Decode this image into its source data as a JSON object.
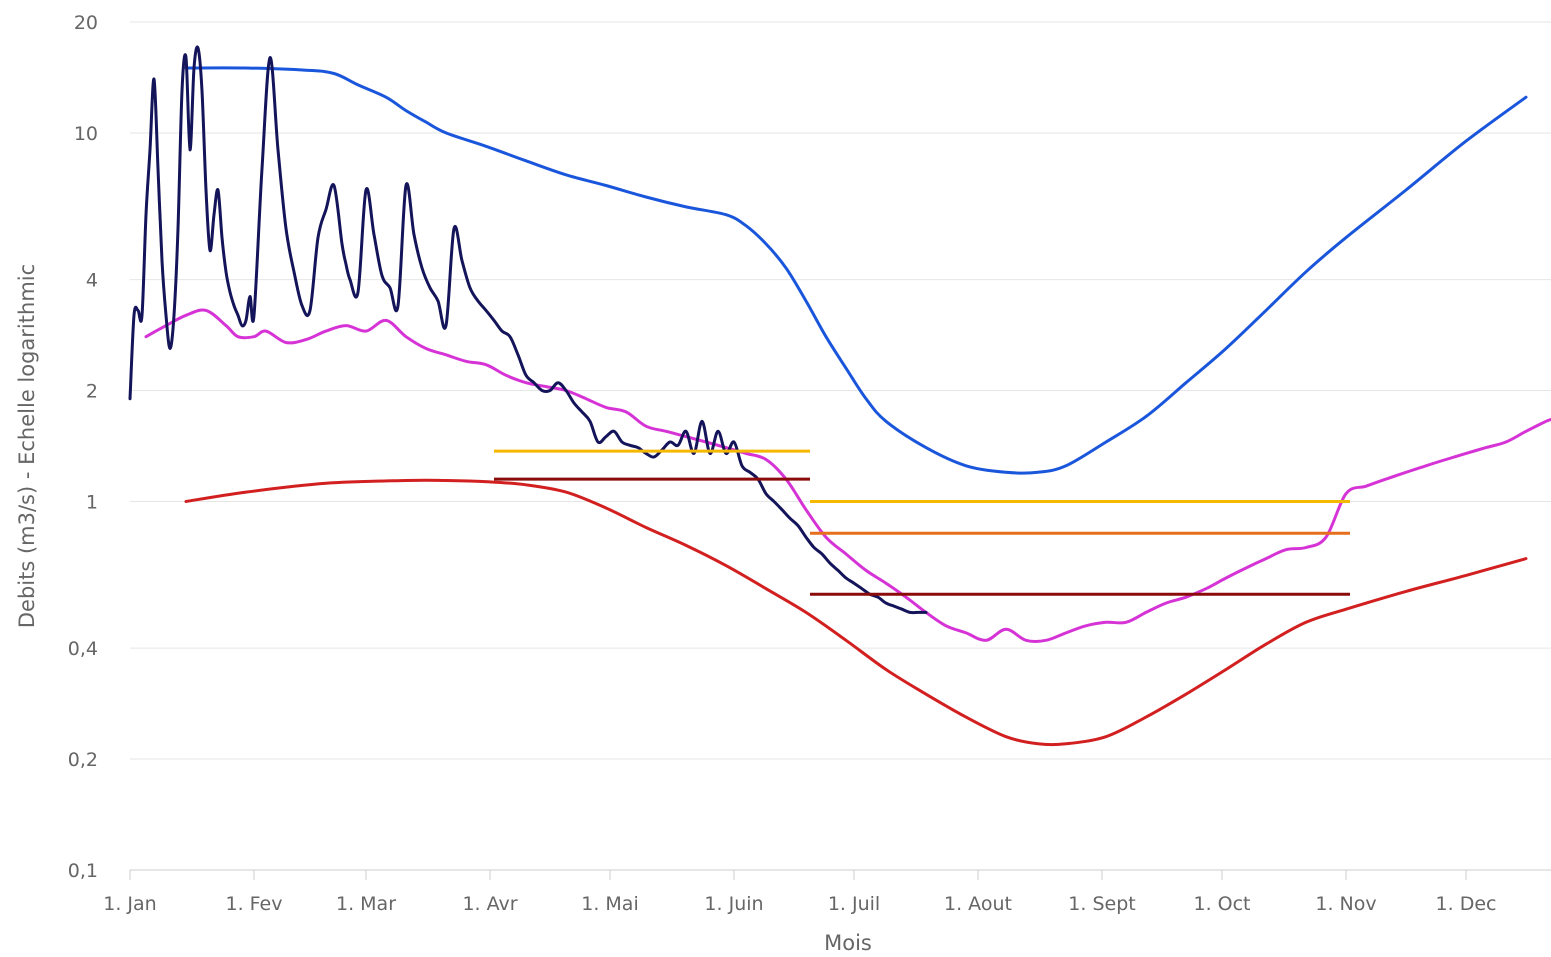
{
  "chart_data": {
    "type": "line",
    "xlabel": "Mois",
    "ylabel": "Debits (m3/s) - Echelle logarithmic",
    "yscale": "log",
    "grid": true,
    "xlim_days": [
      1,
      365
    ],
    "ylim": [
      0.1,
      20
    ],
    "y_ticks": [
      {
        "value": 0.1,
        "label": "0,1"
      },
      {
        "value": 0.2,
        "label": "0,2"
      },
      {
        "value": 0.4,
        "label": "0,4"
      },
      {
        "value": 1,
        "label": "1"
      },
      {
        "value": 2,
        "label": "2"
      },
      {
        "value": 4,
        "label": "4"
      },
      {
        "value": 10,
        "label": "10"
      },
      {
        "value": 20,
        "label": "20"
      }
    ],
    "x_ticks": [
      {
        "day": 1,
        "label": "1. Jan"
      },
      {
        "day": 32,
        "label": "1. Fev"
      },
      {
        "day": 60,
        "label": "1. Mar"
      },
      {
        "day": 91,
        "label": "1. Avr"
      },
      {
        "day": 121,
        "label": "1. Mai"
      },
      {
        "day": 152,
        "label": "1. Juin"
      },
      {
        "day": 182,
        "label": "1. Juil"
      },
      {
        "day": 213,
        "label": "1. Aout"
      },
      {
        "day": 244,
        "label": "1. Sept"
      },
      {
        "day": 274,
        "label": "1. Oct"
      },
      {
        "day": 305,
        "label": "1. Nov"
      },
      {
        "day": 335,
        "label": "1. Dec"
      }
    ],
    "series": [
      {
        "color": "#1a56db",
        "width": 3,
        "x": [
          15,
          30,
          45,
          52,
          58,
          65,
          70,
          75,
          80,
          90,
          100,
          110,
          120,
          130,
          140,
          150,
          155,
          160,
          165,
          170,
          175,
          180,
          185,
          190,
          200,
          210,
          220,
          228,
          235,
          245,
          255,
          265,
          275,
          285,
          295,
          305,
          320,
          335,
          350
        ],
        "y": [
          15,
          15,
          14.8,
          14.5,
          13.5,
          12.5,
          11.5,
          10.7,
          10,
          9.2,
          8.4,
          7.7,
          7.2,
          6.7,
          6.3,
          6,
          5.6,
          5,
          4.3,
          3.5,
          2.8,
          2.3,
          1.9,
          1.65,
          1.4,
          1.25,
          1.2,
          1.2,
          1.25,
          1.45,
          1.7,
          2.1,
          2.6,
          3.3,
          4.2,
          5.2,
          7,
          9.5,
          12.5
        ]
      },
      {
        "color": "#d21f1f",
        "width": 3,
        "x": [
          15,
          30,
          50,
          70,
          80,
          91,
          100,
          110,
          120,
          130,
          140,
          150,
          160,
          170,
          180,
          190,
          200,
          210,
          220,
          228,
          235,
          245,
          255,
          265,
          275,
          285,
          295,
          305,
          320,
          335,
          350
        ],
        "y": [
          1.0,
          1.06,
          1.12,
          1.14,
          1.14,
          1.13,
          1.11,
          1.06,
          0.96,
          0.85,
          0.76,
          0.67,
          0.58,
          0.5,
          0.42,
          0.35,
          0.3,
          0.26,
          0.23,
          0.22,
          0.22,
          0.23,
          0.26,
          0.3,
          0.35,
          0.41,
          0.47,
          0.51,
          0.57,
          0.63,
          0.7
        ]
      },
      {
        "color": "#d633d6",
        "width": 3,
        "x": [
          5,
          10,
          15,
          20,
          25,
          28,
          32,
          35,
          40,
          45,
          50,
          55,
          60,
          65,
          70,
          75,
          80,
          85,
          90,
          95,
          100,
          105,
          110,
          115,
          120,
          125,
          130,
          135,
          140,
          145,
          150,
          155,
          160,
          165,
          170,
          175,
          180,
          185,
          190,
          195,
          200,
          205,
          210,
          215,
          220,
          225,
          230,
          235,
          240,
          245,
          250,
          255,
          260,
          265,
          270,
          275,
          280,
          285,
          290,
          295,
          300,
          305,
          310,
          315,
          320,
          325,
          330,
          335,
          340,
          345,
          350,
          355,
          360,
          365
        ],
        "y": [
          2.8,
          3.0,
          3.2,
          3.3,
          3.0,
          2.8,
          2.8,
          2.9,
          2.7,
          2.75,
          2.9,
          3.0,
          2.9,
          3.1,
          2.8,
          2.6,
          2.5,
          2.4,
          2.35,
          2.2,
          2.1,
          2.05,
          2.0,
          1.9,
          1.8,
          1.75,
          1.6,
          1.55,
          1.5,
          1.45,
          1.4,
          1.35,
          1.3,
          1.15,
          0.95,
          0.8,
          0.72,
          0.65,
          0.6,
          0.55,
          0.5,
          0.46,
          0.44,
          0.42,
          0.45,
          0.42,
          0.42,
          0.44,
          0.46,
          0.47,
          0.47,
          0.5,
          0.53,
          0.55,
          0.58,
          0.62,
          0.66,
          0.7,
          0.74,
          0.75,
          0.8,
          1.05,
          1.1,
          1.15,
          1.2,
          1.25,
          1.3,
          1.35,
          1.4,
          1.45,
          1.55,
          1.65,
          1.75,
          2.1
        ]
      },
      {
        "color": "#14145a",
        "width": 3,
        "x": [
          1,
          2,
          3,
          4,
          5,
          6,
          7,
          8,
          9,
          10,
          11,
          12,
          13,
          14,
          15,
          16,
          17,
          18,
          19,
          20,
          21,
          22,
          23,
          24,
          25,
          26,
          27,
          28,
          29,
          30,
          31,
          32,
          34,
          36,
          38,
          40,
          42,
          44,
          46,
          48,
          50,
          52,
          54,
          55,
          56,
          58,
          60,
          62,
          64,
          66,
          68,
          70,
          72,
          74,
          76,
          78,
          80,
          82,
          84,
          86,
          88,
          90,
          92,
          94,
          96,
          98,
          100,
          102,
          104,
          106,
          108,
          110,
          112,
          114,
          116,
          118,
          120,
          122,
          124,
          126,
          128,
          130,
          132,
          134,
          136,
          138,
          140,
          142,
          144,
          146,
          148,
          150,
          152,
          154,
          156,
          158,
          160,
          162,
          164,
          166,
          168,
          170,
          172,
          174,
          176,
          178,
          180,
          182,
          184,
          186,
          188,
          190,
          192,
          194,
          196,
          198,
          200
        ],
        "y": [
          1.9,
          3.2,
          3.3,
          3.2,
          6,
          9,
          14,
          8,
          4.5,
          3.2,
          2.6,
          3.2,
          5.5,
          13,
          16,
          9,
          15,
          17,
          13,
          7,
          4.8,
          6,
          7,
          5.2,
          4.2,
          3.7,
          3.4,
          3.2,
          3.0,
          3.1,
          3.6,
          3.2,
          8,
          16,
          9,
          5.5,
          4.2,
          3.4,
          3.3,
          5.2,
          6.2,
          7.2,
          5,
          4.4,
          4,
          3.7,
          7,
          5.3,
          4.1,
          3.8,
          3.4,
          7.2,
          5.3,
          4.3,
          3.8,
          3.5,
          3.0,
          5.5,
          4.5,
          3.8,
          3.5,
          3.3,
          3.1,
          2.9,
          2.8,
          2.5,
          2.2,
          2.1,
          2.0,
          2.0,
          2.1,
          2.0,
          1.85,
          1.75,
          1.65,
          1.45,
          1.5,
          1.55,
          1.45,
          1.42,
          1.4,
          1.35,
          1.32,
          1.38,
          1.45,
          1.42,
          1.55,
          1.35,
          1.65,
          1.35,
          1.55,
          1.35,
          1.45,
          1.25,
          1.2,
          1.15,
          1.05,
          1.0,
          0.95,
          0.9,
          0.86,
          0.8,
          0.75,
          0.72,
          0.68,
          0.65,
          0.62,
          0.6,
          0.58,
          0.56,
          0.55,
          0.53,
          0.52,
          0.51,
          0.5,
          0.5,
          0.5
        ]
      }
    ],
    "thresholds": [
      {
        "color": "#f5b800",
        "x": [
          92,
          171
        ],
        "y": 1.37
      },
      {
        "color": "#8b0a0a",
        "x": [
          92,
          171
        ],
        "y": 1.15
      },
      {
        "color": "#f5b800",
        "x": [
          171,
          306
        ],
        "y": 1.0
      },
      {
        "color": "#e56f1a",
        "x": [
          171,
          306
        ],
        "y": 0.82
      },
      {
        "color": "#8b0a0a",
        "x": [
          171,
          306
        ],
        "y": 0.56
      }
    ]
  }
}
